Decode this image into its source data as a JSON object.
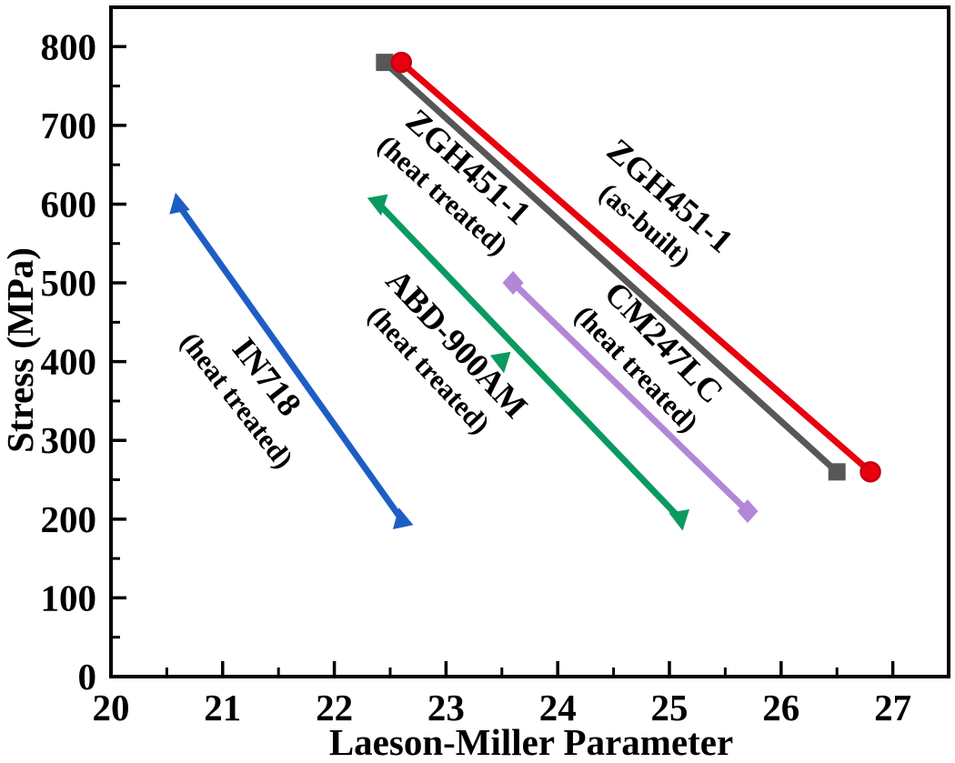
{
  "chart_data": {
    "type": "line",
    "title": "",
    "xlabel": "Laeson-Miller Parameter",
    "ylabel": "Stress (MPa)",
    "xlim": [
      20,
      27.5
    ],
    "ylim": [
      0,
      850
    ],
    "x_ticks": [
      20,
      21,
      22,
      23,
      24,
      25,
      26,
      27
    ],
    "y_ticks": [
      0,
      100,
      200,
      300,
      400,
      500,
      600,
      700,
      800
    ],
    "x_minor_tick_step": 0.5,
    "y_minor_tick_step": 50,
    "grid": false,
    "legend_position": "inline rotated labels along lines",
    "series": [
      {
        "name": "ZGH451-1 (heat treated)",
        "label_lines": [
          "ZGH451-1",
          "(heat treated)"
        ],
        "color": "#575757",
        "marker": "square",
        "points": [
          [
            22.45,
            780
          ],
          [
            26.5,
            260
          ]
        ]
      },
      {
        "name": "ZGH451-1 (as-built)",
        "label_lines": [
          "ZGH451-1",
          "(as-built)"
        ],
        "color": "#e8000f",
        "marker": "circle",
        "points": [
          [
            22.6,
            780
          ],
          [
            26.8,
            260
          ]
        ]
      },
      {
        "name": "CM247LC (heat treated)",
        "label_lines": [
          "CM247LC",
          "(heat treated)"
        ],
        "color": "#b287d8",
        "marker": "diamond",
        "points": [
          [
            23.6,
            500
          ],
          [
            25.7,
            210
          ]
        ]
      },
      {
        "name": "ABD-900AM (heat treated)",
        "label_lines": [
          "ABD-900AM",
          "(heat treated)"
        ],
        "color": "#0a9a60",
        "marker": "triangle-down",
        "points": [
          [
            22.4,
            600
          ],
          [
            25.1,
            200
          ]
        ],
        "extra_points": [
          [
            23.5,
            400
          ]
        ]
      },
      {
        "name": "IN718 (heat treated)",
        "label_lines": [
          "IN718",
          "(heat treated)"
        ],
        "color": "#1e5ec4",
        "marker": "triangle-up",
        "points": [
          [
            20.6,
            600
          ],
          [
            22.6,
            200
          ]
        ]
      }
    ]
  }
}
